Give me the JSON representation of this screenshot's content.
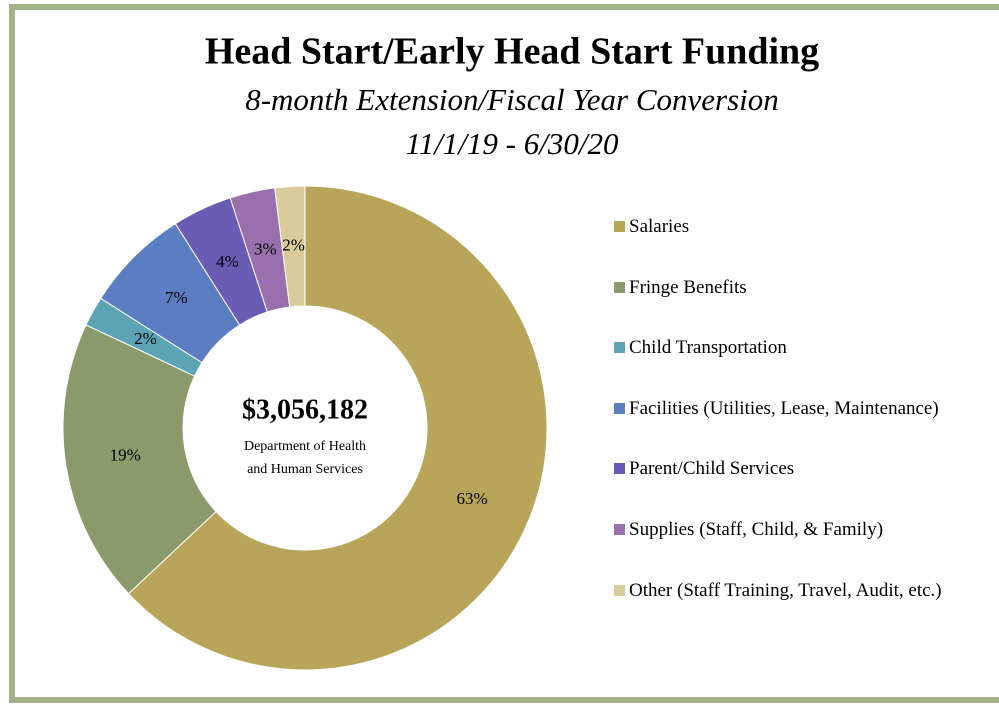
{
  "chart_data": {
    "type": "donut",
    "title": "Head Start/Early Head Start Funding",
    "subtitle": [
      "8-month Extension/Fiscal Year Conversion",
      "11/1/19 - 6/30/20"
    ],
    "center_text": "$3,056,182",
    "center_subtitle": [
      "Department of Health",
      "and Human Services"
    ],
    "categories": [
      "Salaries",
      "Fringe Benefits",
      "Child Transportation",
      "Facilities (Utilities, Lease, Maintenance)",
      "Parent/Child Services",
      "Supplies (Staff, Child, & Family)",
      "Other (Staff Training, Travel, Audit, etc.)"
    ],
    "values": [
      63,
      19,
      2,
      7,
      4,
      3,
      2
    ],
    "value_labels": [
      "63%",
      "19%",
      "2%",
      "7%",
      "4%",
      "3%",
      "2%"
    ],
    "colors": [
      "#b8a55a",
      "#8a9a6b",
      "#5ba3b5",
      "#5b7ec2",
      "#6a5bb5",
      "#9a6fae",
      "#d9cc9a"
    ],
    "legend": "right"
  }
}
